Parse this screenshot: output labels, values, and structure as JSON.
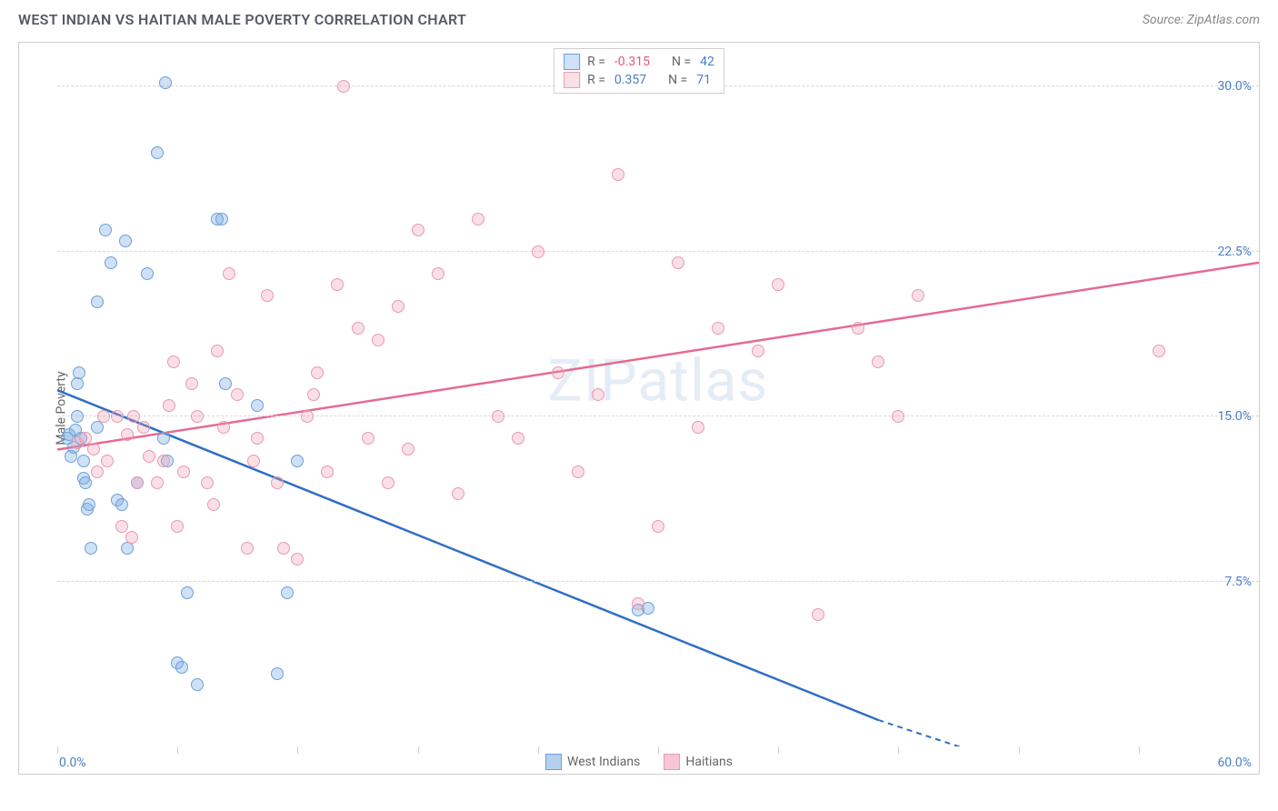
{
  "title": "WEST INDIAN VS HAITIAN MALE POVERTY CORRELATION CHART",
  "source": "Source: ZipAtlas.com",
  "watermark": "ZIPatlas",
  "yaxis_title": "Male Poverty",
  "chart": {
    "type": "scatter",
    "xlim": [
      0,
      60
    ],
    "ylim": [
      0,
      32
    ],
    "yticks": [
      7.5,
      15.0,
      22.5,
      30.0
    ],
    "ytick_labels": [
      "7.5%",
      "15.0%",
      "22.5%",
      "30.0%"
    ],
    "xtick_positions": [
      0,
      6,
      12,
      18,
      24,
      30,
      36,
      42,
      48,
      54,
      60
    ],
    "xaxis_left_label": "0.0%",
    "xaxis_right_label": "60.0%",
    "background_color": "#ffffff",
    "grid_color": "#d8d8d8",
    "series": [
      {
        "name": "West Indians",
        "R": "-0.315",
        "R_sign": "neg",
        "N": "42",
        "marker_fill": "rgba(120,170,225,0.35)",
        "marker_stroke": "#6aa1d8",
        "line_color": "#2f6fc5",
        "line": {
          "x1": 0,
          "y1": 16.2,
          "x2": 41,
          "y2": 1.2,
          "x2_dash": 51,
          "y2_dash": -1.8
        },
        "points": [
          [
            0.5,
            14.0
          ],
          [
            0.6,
            14.2
          ],
          [
            0.8,
            13.6
          ],
          [
            0.9,
            14.4
          ],
          [
            1.0,
            16.5
          ],
          [
            1.1,
            17.0
          ],
          [
            1.2,
            14.0
          ],
          [
            1.3,
            12.2
          ],
          [
            1.4,
            12.0
          ],
          [
            1.5,
            10.8
          ],
          [
            1.6,
            11.0
          ],
          [
            1.7,
            9.0
          ],
          [
            0.7,
            13.2
          ],
          [
            2.0,
            14.5
          ],
          [
            2.0,
            20.2
          ],
          [
            2.4,
            23.5
          ],
          [
            2.7,
            22.0
          ],
          [
            3.4,
            23.0
          ],
          [
            3.0,
            11.2
          ],
          [
            3.2,
            11.0
          ],
          [
            3.5,
            9.0
          ],
          [
            4.0,
            12.0
          ],
          [
            4.5,
            21.5
          ],
          [
            5.4,
            30.2
          ],
          [
            5.0,
            27.0
          ],
          [
            5.3,
            14.0
          ],
          [
            5.5,
            13.0
          ],
          [
            6.0,
            3.8
          ],
          [
            6.2,
            3.6
          ],
          [
            6.5,
            7.0
          ],
          [
            7.0,
            2.8
          ],
          [
            8.0,
            24.0
          ],
          [
            8.2,
            24.0
          ],
          [
            8.4,
            16.5
          ],
          [
            10.0,
            15.5
          ],
          [
            11.0,
            3.3
          ],
          [
            11.5,
            7.0
          ],
          [
            12.0,
            13.0
          ],
          [
            29.0,
            6.2
          ],
          [
            29.5,
            6.3
          ],
          [
            1.0,
            15.0
          ],
          [
            1.3,
            13.0
          ]
        ]
      },
      {
        "name": "Haitians",
        "R": "0.357",
        "R_sign": "pos",
        "N": "71",
        "marker_fill": "rgba(240,150,175,0.30)",
        "marker_stroke": "#e89ab0",
        "line_color": "#e66a8e",
        "line": {
          "x1": 0,
          "y1": 13.5,
          "x2": 60,
          "y2": 22.0
        },
        "points": [
          [
            1.0,
            13.8
          ],
          [
            1.4,
            14.0
          ],
          [
            1.8,
            13.5
          ],
          [
            2.0,
            12.5
          ],
          [
            2.3,
            15.0
          ],
          [
            2.5,
            13.0
          ],
          [
            3.0,
            15.0
          ],
          [
            3.2,
            10.0
          ],
          [
            3.5,
            14.2
          ],
          [
            3.8,
            15.0
          ],
          [
            4.0,
            12.0
          ],
          [
            4.3,
            14.5
          ],
          [
            4.6,
            13.2
          ],
          [
            5.0,
            12.0
          ],
          [
            5.3,
            13.0
          ],
          [
            5.6,
            15.5
          ],
          [
            6.0,
            10.0
          ],
          [
            6.3,
            12.5
          ],
          [
            6.7,
            16.5
          ],
          [
            7.0,
            15.0
          ],
          [
            7.5,
            12.0
          ],
          [
            8.0,
            18.0
          ],
          [
            8.3,
            14.5
          ],
          [
            8.6,
            21.5
          ],
          [
            9.0,
            16.0
          ],
          [
            9.5,
            9.0
          ],
          [
            10.0,
            14.0
          ],
          [
            10.5,
            20.5
          ],
          [
            11.0,
            12.0
          ],
          [
            11.3,
            9.0
          ],
          [
            12.0,
            8.5
          ],
          [
            12.5,
            15.0
          ],
          [
            13.0,
            17.0
          ],
          [
            13.5,
            12.5
          ],
          [
            14.0,
            21.0
          ],
          [
            14.3,
            30.0
          ],
          [
            15.0,
            19.0
          ],
          [
            15.5,
            14.0
          ],
          [
            16.0,
            18.5
          ],
          [
            16.5,
            12.0
          ],
          [
            17.0,
            20.0
          ],
          [
            18.0,
            23.5
          ],
          [
            19.0,
            21.5
          ],
          [
            20.0,
            11.5
          ],
          [
            21.0,
            24.0
          ],
          [
            22.0,
            15.0
          ],
          [
            23.0,
            14.0
          ],
          [
            24.0,
            22.5
          ],
          [
            26.0,
            12.5
          ],
          [
            27.0,
            16.0
          ],
          [
            28.0,
            26.0
          ],
          [
            30.0,
            10.0
          ],
          [
            31.0,
            22.0
          ],
          [
            32.0,
            14.5
          ],
          [
            33.0,
            19.0
          ],
          [
            35.0,
            18.0
          ],
          [
            36.0,
            21.0
          ],
          [
            38.0,
            6.0
          ],
          [
            40.0,
            19.0
          ],
          [
            41.0,
            17.5
          ],
          [
            42.0,
            15.0
          ],
          [
            43.0,
            20.5
          ],
          [
            55.0,
            18.0
          ],
          [
            3.7,
            9.5
          ],
          [
            5.8,
            17.5
          ],
          [
            7.8,
            11.0
          ],
          [
            9.8,
            13.0
          ],
          [
            12.8,
            16.0
          ],
          [
            17.5,
            13.5
          ],
          [
            25.0,
            17.0
          ],
          [
            29.0,
            6.5
          ]
        ]
      }
    ],
    "legend_bottom": [
      {
        "label": "West Indians",
        "fill": "rgba(120,170,225,0.55)",
        "stroke": "#6aa1d8"
      },
      {
        "label": "Haitians",
        "fill": "rgba(240,150,175,0.55)",
        "stroke": "#e89ab0"
      }
    ]
  }
}
